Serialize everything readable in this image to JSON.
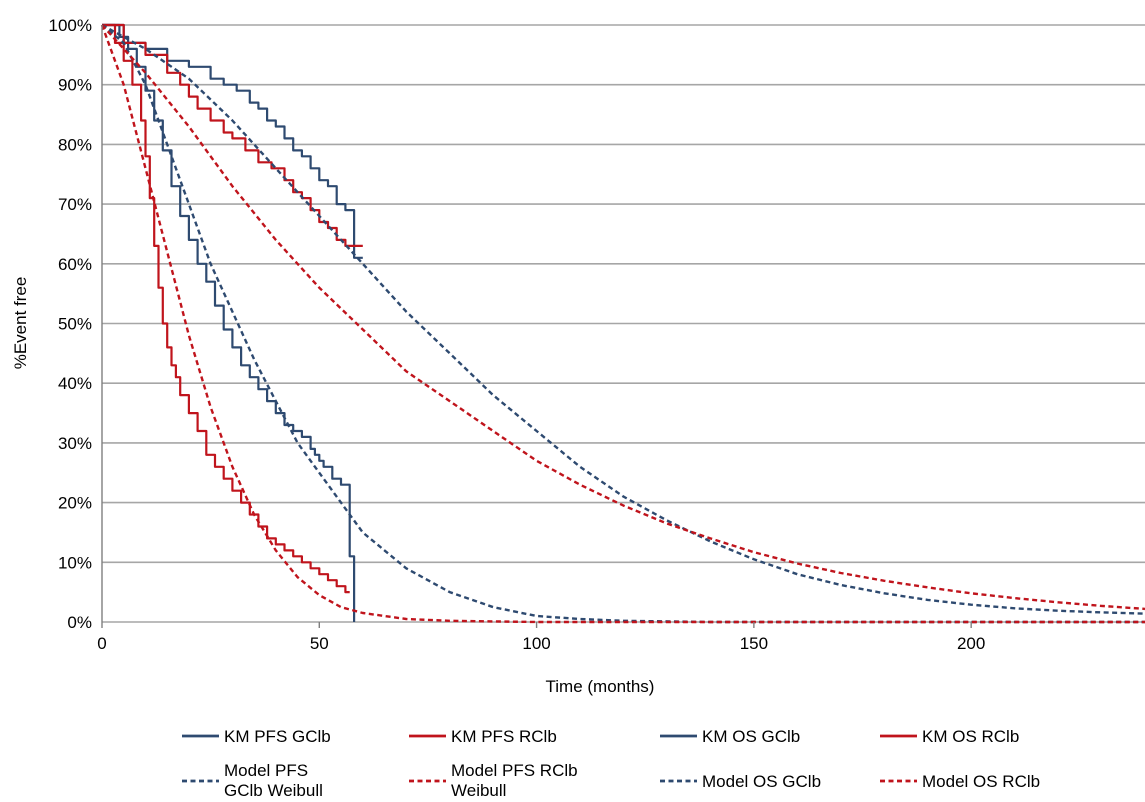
{
  "chart_data": {
    "type": "line",
    "title": "",
    "xlabel": "Time (months)",
    "ylabel": "%Event free",
    "xlim": [
      0,
      240
    ],
    "ylim": [
      0,
      100
    ],
    "x_ticks": [
      0,
      50,
      100,
      150,
      200
    ],
    "x_tick_labels": [
      "0",
      "50",
      "100",
      "150",
      "200"
    ],
    "y_ticks": [
      0,
      10,
      20,
      30,
      40,
      50,
      60,
      70,
      80,
      90,
      100
    ],
    "y_tick_labels": [
      "0%",
      "10%",
      "20%",
      "30%",
      "40%",
      "50%",
      "60%",
      "70%",
      "80%",
      "90%",
      "100%"
    ],
    "grid": "horizontal",
    "legend_position": "bottom",
    "colors": {
      "gclb": "#2e4a70",
      "rclb": "#c0141c",
      "grid": "#a6a6a6"
    },
    "series": [
      {
        "name": "KM PFS GClb",
        "style": "solid",
        "color": "#2e4a70",
        "step": true,
        "legend_col": 0,
        "legend_row": 0,
        "x": [
          0,
          4,
          6,
          8,
          10,
          12,
          14,
          16,
          18,
          20,
          22,
          24,
          26,
          28,
          30,
          32,
          34,
          36,
          38,
          40,
          42,
          44,
          46,
          48,
          49,
          50,
          51,
          53,
          55,
          56,
          57,
          58,
          58
        ],
        "y": [
          100,
          98,
          96,
          93,
          89,
          84,
          79,
          73,
          68,
          64,
          60,
          57,
          53,
          49,
          46,
          43,
          41,
          39,
          37,
          35,
          33,
          32,
          31,
          29,
          28,
          27,
          26,
          24,
          23,
          23,
          11,
          10,
          0
        ]
      },
      {
        "name": "KM PFS RClb",
        "style": "solid",
        "color": "#c0141c",
        "step": true,
        "legend_col": 1,
        "legend_row": 0,
        "x": [
          0,
          3,
          5,
          7,
          9,
          10,
          11,
          12,
          13,
          14,
          15,
          16,
          17,
          18,
          20,
          22,
          24,
          26,
          28,
          30,
          32,
          34,
          36,
          38,
          40,
          42,
          44,
          46,
          48,
          50,
          52,
          54,
          56,
          57
        ],
        "y": [
          100,
          97,
          94,
          90,
          84,
          78,
          71,
          63,
          56,
          50,
          46,
          43,
          41,
          38,
          35,
          32,
          28,
          26,
          24,
          22,
          20,
          18,
          16,
          14,
          13,
          12,
          11,
          10,
          9,
          8,
          7,
          6,
          5,
          5
        ]
      },
      {
        "name": "KM OS GClb",
        "style": "solid",
        "color": "#2e4a70",
        "step": true,
        "legend_col": 2,
        "legend_row": 0,
        "x": [
          0,
          5,
          10,
          15,
          20,
          25,
          28,
          31,
          34,
          36,
          38,
          40,
          42,
          44,
          46,
          48,
          50,
          52,
          54,
          56,
          58,
          58,
          60
        ],
        "y": [
          100,
          97,
          96,
          94,
          93,
          91,
          90,
          89,
          87,
          86,
          84,
          83,
          81,
          79,
          78,
          76,
          74,
          73,
          70,
          69,
          68,
          61,
          61
        ]
      },
      {
        "name": "KM OS RClb",
        "style": "solid",
        "color": "#c0141c",
        "step": true,
        "legend_col": 3,
        "legend_row": 0,
        "x": [
          0,
          5,
          10,
          15,
          18,
          20,
          22,
          25,
          28,
          30,
          33,
          36,
          39,
          42,
          44,
          46,
          48,
          50,
          52,
          54,
          56,
          60
        ],
        "y": [
          100,
          97,
          95,
          92,
          90,
          88,
          86,
          84,
          82,
          81,
          79,
          77,
          76,
          74,
          72,
          71,
          69,
          67,
          66,
          64,
          63,
          63
        ]
      },
      {
        "name": "Model PFS GClb Weibull",
        "name_lines": [
          "Model PFS",
          "GClb Weibull"
        ],
        "style": "dashed",
        "color": "#2e4a70",
        "step": false,
        "legend_col": 0,
        "legend_row": 1,
        "x": [
          0,
          5,
          10,
          15,
          20,
          25,
          30,
          35,
          40,
          45,
          50,
          55,
          60,
          65,
          70,
          80,
          90,
          100,
          110,
          120,
          140,
          160,
          200,
          240
        ],
        "y": [
          100,
          97,
          90,
          80,
          70,
          60,
          52,
          44,
          37,
          30,
          25,
          20,
          15,
          12,
          9,
          5,
          2.5,
          1,
          0.5,
          0.2,
          0,
          0,
          0,
          0
        ]
      },
      {
        "name": "Model PFS RClb Weibull",
        "name_lines": [
          "Model PFS RClb",
          "Weibull"
        ],
        "style": "dashed",
        "color": "#c0141c",
        "step": false,
        "legend_col": 1,
        "legend_row": 1,
        "x": [
          0,
          5,
          10,
          15,
          20,
          25,
          30,
          35,
          40,
          45,
          50,
          55,
          60,
          70,
          80,
          100,
          120,
          160,
          240
        ],
        "y": [
          100,
          90,
          76,
          62,
          48,
          36,
          26,
          18,
          12,
          7.5,
          4.5,
          2.5,
          1.5,
          0.5,
          0.2,
          0,
          0,
          0,
          0
        ]
      },
      {
        "name": "Model OS GClb",
        "style": "dashed",
        "color": "#2e4a70",
        "step": false,
        "legend_col": 2,
        "legend_row": 1,
        "x": [
          0,
          10,
          20,
          30,
          40,
          50,
          60,
          70,
          80,
          90,
          100,
          110,
          120,
          130,
          140,
          150,
          160,
          170,
          180,
          190,
          200,
          210,
          220,
          230,
          240
        ],
        "y": [
          100,
          96,
          91,
          84,
          76,
          68,
          60,
          52,
          45,
          38,
          32,
          26,
          21,
          17,
          13.5,
          10.5,
          8,
          6.2,
          4.8,
          3.7,
          2.9,
          2.3,
          1.9,
          1.6,
          1.4
        ]
      },
      {
        "name": "Model OS RClb",
        "style": "dashed",
        "color": "#c0141c",
        "step": false,
        "legend_col": 3,
        "legend_row": 1,
        "x": [
          0,
          10,
          20,
          30,
          40,
          50,
          60,
          70,
          80,
          90,
          100,
          110,
          120,
          130,
          140,
          150,
          160,
          170,
          180,
          190,
          200,
          210,
          220,
          230,
          240
        ],
        "y": [
          100,
          92,
          83,
          73,
          64,
          56,
          49,
          42,
          37,
          32,
          27,
          23,
          19.5,
          16.5,
          14,
          11.7,
          9.8,
          8.2,
          6.9,
          5.8,
          4.8,
          4,
          3.3,
          2.7,
          2.2
        ]
      }
    ]
  }
}
